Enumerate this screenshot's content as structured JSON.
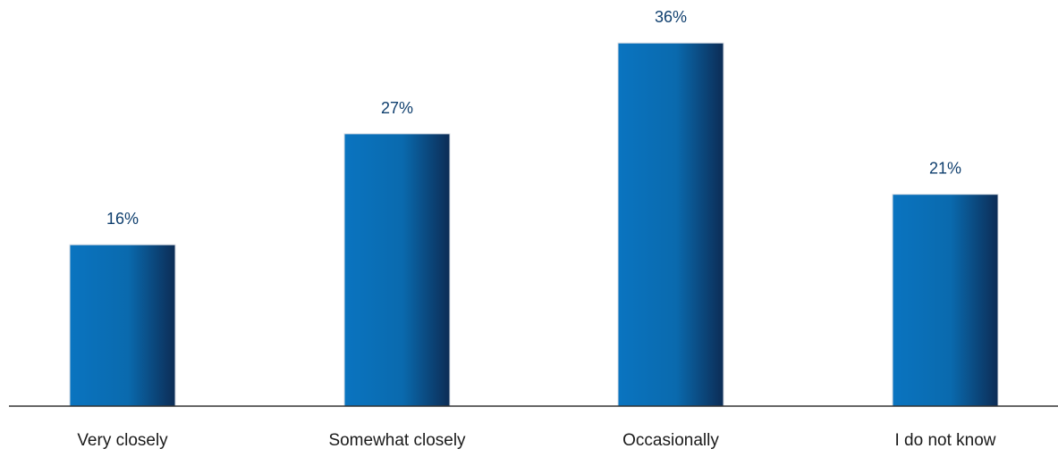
{
  "chart_data": {
    "type": "bar",
    "categories": [
      "Very closely",
      "Somewhat closely",
      "Occasionally",
      "I do not know"
    ],
    "values": [
      16,
      27,
      36,
      21
    ],
    "value_labels": [
      "16%",
      "27%",
      "36%",
      "21%"
    ],
    "unit": "%",
    "title": "",
    "xlabel": "",
    "ylabel": "",
    "ylim": [
      0,
      36
    ],
    "grid": false,
    "legend": "none",
    "colors": {
      "bar_light": "#0a74c0",
      "bar_dark": "#0c2c55",
      "value_text": "#0f3f6e",
      "category_text": "#1a1a1a",
      "axis": "#333333"
    }
  }
}
